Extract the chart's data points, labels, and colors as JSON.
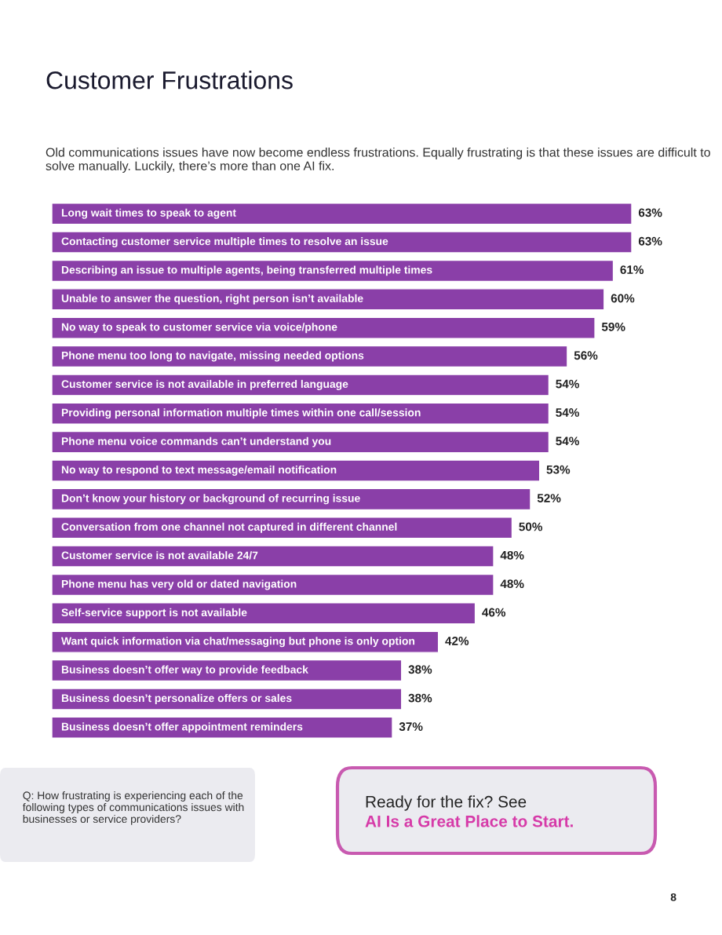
{
  "chart_data": {
    "type": "bar",
    "orientation": "horizontal",
    "title": "Customer Frustrations",
    "subtitle": "Old communications issues have now become endless frustrations. Equally frustrating is that these issues are difficult to solve manually. Luckily, there’s more than one AI fix.",
    "categories": [
      "Long wait times to speak to agent",
      "Contacting customer service multiple times to resolve an issue",
      "Describing an issue to multiple agents, being transferred multiple times",
      "Unable to answer the question, right person isn’t available",
      "No way to speak to customer service via voice/phone",
      "Phone menu too long to navigate, missing needed options",
      "Customer service is not available in preferred language",
      "Providing personal information multiple times within one call/session",
      "Phone menu voice commands can’t understand you",
      "No way to respond to text message/email notification",
      "Don’t know your history or background of recurring issue",
      "Conversation from one channel not captured in different channel",
      "Customer service is not available 24/7",
      "Phone menu has very old or dated navigation",
      "Self-service support is not available",
      "Want quick information via chat/messaging but phone is only option",
      "Business doesn’t offer way to provide feedback",
      "Business doesn’t personalize offers or sales",
      "Business doesn’t offer appointment reminders"
    ],
    "values": [
      63,
      63,
      61,
      60,
      59,
      56,
      54,
      54,
      54,
      53,
      52,
      50,
      48,
      48,
      46,
      42,
      38,
      38,
      37
    ],
    "value_labels": [
      "63%",
      "63%",
      "61%",
      "60%",
      "59%",
      "56%",
      "54%",
      "54%",
      "54%",
      "53%",
      "52%",
      "50%",
      "48%",
      "48%",
      "46%",
      "42%",
      "38%",
      "38%",
      "37%"
    ],
    "color": "#8a3fa8",
    "annotations": [
      "Q: How frustrating is experiencing each of the following types of communications issues with businesses or service providers?",
      "Ready for the fix? See",
      "AI Is a Great Place to Start.",
      "8"
    ]
  }
}
